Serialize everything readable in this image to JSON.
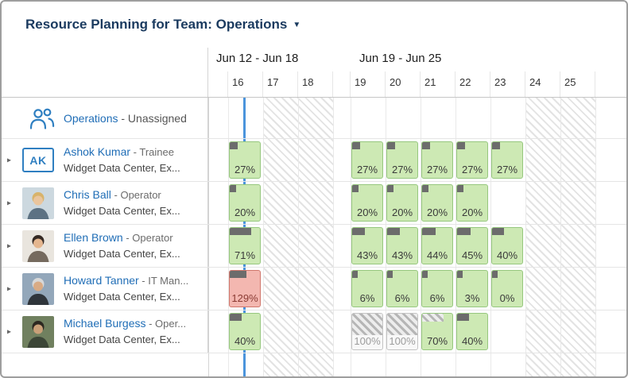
{
  "title": {
    "text": "Resource Planning for Team: Operations",
    "caret": "▼"
  },
  "icons": {
    "expand": "▸",
    "team": "group-people-icon"
  },
  "timeline": {
    "weeks": [
      {
        "label": "Jun 12 - Jun 18",
        "days": [
          "16",
          "17",
          "18"
        ]
      },
      {
        "label": "Jun 19 - Jun 25",
        "days": [
          "19",
          "20",
          "21",
          "22",
          "23",
          "24",
          "25"
        ]
      }
    ],
    "weekend_days": [
      "17",
      "18",
      "24",
      "25"
    ],
    "today_day": "16"
  },
  "colors": {
    "title_text": "#1a3a5f",
    "link": "#1f6db6",
    "today_line": "#4b94dc",
    "cell_ok_bg": "#cde9b4",
    "cell_ok_border": "#96c77e",
    "cell_over_bg": "#f3b7b0",
    "cell_over_border": "#d0776c",
    "cell_over_text": "#8a3b33",
    "cell_tentative_text": "#9c9c9c",
    "allocation_bar": "#6c6c6c",
    "avatar_initials": "#2f7fc1"
  },
  "rows": [
    {
      "kind": "group",
      "name": "Operations",
      "detail": " - Unassigned",
      "cells": []
    },
    {
      "kind": "person",
      "name": "Ashok Kumar",
      "role": " - Trainee",
      "org": "Widget Data Center, Ex...",
      "avatar": {
        "kind": "initials",
        "text": "AK"
      },
      "cells": [
        {
          "day": "16",
          "label": "27%",
          "style": "green",
          "bar": 27
        },
        {
          "day": "19",
          "label": "27%",
          "style": "green",
          "bar": 27
        },
        {
          "day": "20",
          "label": "27%",
          "style": "green",
          "bar": 27
        },
        {
          "day": "21",
          "label": "27%",
          "style": "green",
          "bar": 27
        },
        {
          "day": "22",
          "label": "27%",
          "style": "green",
          "bar": 27
        },
        {
          "day": "23",
          "label": "27%",
          "style": "green",
          "bar": 27
        }
      ]
    },
    {
      "kind": "person",
      "name": "Chris Ball",
      "role": " - Operator",
      "org": "Widget Data Center, Ex...",
      "avatar": {
        "kind": "photo",
        "colors": {
          "bg": "#ccd8df",
          "hair": "#d8b36a",
          "skin": "#eac59d",
          "shirt": "#5d7283"
        }
      },
      "cells": [
        {
          "day": "16",
          "label": "20%",
          "style": "green",
          "bar": 20
        },
        {
          "day": "19",
          "label": "20%",
          "style": "green",
          "bar": 20
        },
        {
          "day": "20",
          "label": "20%",
          "style": "green",
          "bar": 20
        },
        {
          "day": "21",
          "label": "20%",
          "style": "green",
          "bar": 20
        },
        {
          "day": "22",
          "label": "20%",
          "style": "green",
          "bar": 20
        }
      ]
    },
    {
      "kind": "person",
      "name": "Ellen Brown",
      "role": " - Operator",
      "org": "Widget Data Center, Ex...",
      "avatar": {
        "kind": "photo",
        "colors": {
          "bg": "#e9e5de",
          "hair": "#352a24",
          "skin": "#e4b68f",
          "shirt": "#756a5e"
        }
      },
      "cells": [
        {
          "day": "16",
          "label": "71%",
          "style": "green",
          "bar": 71
        },
        {
          "day": "19",
          "label": "43%",
          "style": "green",
          "bar": 43
        },
        {
          "day": "20",
          "label": "43%",
          "style": "green",
          "bar": 43
        },
        {
          "day": "21",
          "label": "44%",
          "style": "green",
          "bar": 44
        },
        {
          "day": "22",
          "label": "45%",
          "style": "green",
          "bar": 45
        },
        {
          "day": "23",
          "label": "40%",
          "style": "green",
          "bar": 40
        }
      ]
    },
    {
      "kind": "person",
      "name": "Howard Tanner",
      "role": " - IT Man...",
      "org": "Widget Data Center, Ex...",
      "avatar": {
        "kind": "photo",
        "colors": {
          "bg": "#93a7ba",
          "hair": "#d8d8d8",
          "skin": "#d9ab85",
          "shirt": "#2f353b"
        }
      },
      "cells": [
        {
          "day": "16",
          "label": "129%",
          "style": "red",
          "bar": 55
        },
        {
          "day": "19",
          "label": "6%",
          "style": "green",
          "bar": 12
        },
        {
          "day": "20",
          "label": "6%",
          "style": "green",
          "bar": 12
        },
        {
          "day": "21",
          "label": "6%",
          "style": "green",
          "bar": 12
        },
        {
          "day": "22",
          "label": "3%",
          "style": "green",
          "bar": 10
        },
        {
          "day": "23",
          "label": "0%",
          "style": "green",
          "bar": 8
        }
      ]
    },
    {
      "kind": "person",
      "name": "Michael Burgess",
      "role": " - Oper...",
      "org": "Widget Data Center, Ex...",
      "avatar": {
        "kind": "photo",
        "colors": {
          "bg": "#70805f",
          "hair": "#2c2820",
          "skin": "#c9a078",
          "shirt": "#3c4637"
        }
      },
      "cells": [
        {
          "day": "16",
          "label": "40%",
          "style": "green",
          "bar": 40
        },
        {
          "day": "19",
          "label": "100%",
          "style": "grayhatch",
          "bar": 100
        },
        {
          "day": "20",
          "label": "100%",
          "style": "grayhatch",
          "bar": 100
        },
        {
          "day": "21",
          "label": "70%",
          "style": "greenhatch",
          "bar": 70
        },
        {
          "day": "22",
          "label": "40%",
          "style": "green",
          "bar": 40
        }
      ]
    }
  ]
}
